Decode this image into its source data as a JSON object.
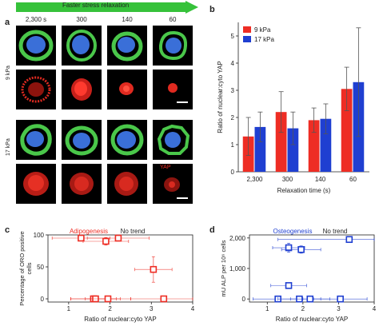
{
  "panel_labels": [
    "a",
    "b",
    "c",
    "d"
  ],
  "panel_a": {
    "arrow_label": "Faster stress relaxation",
    "time_labels": [
      "2,300 s",
      "300",
      "140",
      "60"
    ],
    "row_labels": [
      "9 kPa",
      "17 kPa"
    ],
    "yap_label": "YAP"
  },
  "colors": {
    "red": "#ee2d24",
    "blue": "#1f3fd1",
    "green": "#4ac74a",
    "arrow": "#36c23a"
  },
  "chart_data": [
    {
      "type": "bar",
      "ylabel": "Ratio of nuclear:cyto YAP",
      "xlabel": "Relaxation time (s)",
      "categories": [
        "2,300",
        "300",
        "140",
        "60"
      ],
      "ylim": [
        0,
        5.5
      ],
      "yticks": [
        0,
        1,
        2,
        3,
        4,
        5
      ],
      "legend_position": "top-left",
      "series": [
        {
          "name": "9 kPa",
          "color": "#ee2d24",
          "values": [
            1.3,
            2.2,
            1.9,
            3.05
          ],
          "errors": [
            0.7,
            0.75,
            0.45,
            0.8
          ]
        },
        {
          "name": "17 kPa",
          "color": "#1f3fd1",
          "values": [
            1.65,
            1.6,
            1.95,
            3.3
          ],
          "errors": [
            0.55,
            0.6,
            0.55,
            2.0
          ]
        }
      ]
    },
    {
      "type": "scatter",
      "title": "Adipogenesis",
      "trend_label": "No trend",
      "ylabel": "Percentage of ORO positive cells",
      "xlabel": "Ratio of nuclear:cyto YAP",
      "xlim": [
        0.5,
        4
      ],
      "ylim": [
        -5,
        100
      ],
      "xticks": [
        1,
        2,
        3,
        4
      ],
      "yticks": [
        0,
        50,
        100
      ],
      "color": "#ee2d24",
      "points": [
        {
          "x": 1.3,
          "y": 95,
          "xerr": 0.7,
          "yerr": 0
        },
        {
          "x": 1.9,
          "y": 90,
          "xerr": 0.55,
          "yerr": 6
        },
        {
          "x": 2.2,
          "y": 95,
          "xerr": 0.75,
          "yerr": 0
        },
        {
          "x": 3.05,
          "y": 46,
          "xerr": 0.45,
          "yerr": 20
        },
        {
          "x": 1.6,
          "y": 0,
          "xerr": 0.55,
          "yerr": 0
        },
        {
          "x": 1.65,
          "y": 0,
          "xerr": 0.6,
          "yerr": 0
        },
        {
          "x": 1.95,
          "y": 0,
          "xerr": 0.55,
          "yerr": 0
        },
        {
          "x": 3.3,
          "y": 0,
          "xerr": 0.8,
          "yerr": 0
        }
      ]
    },
    {
      "type": "scatter",
      "title": "Osteogenesis",
      "trend_label": "No trend",
      "ylabel": "mU ALP per 10⁶ cells",
      "xlabel": "Ratio of nuclear:cyto YAP",
      "xlim": [
        0.5,
        4
      ],
      "ylim": [
        -100,
        2100
      ],
      "xticks": [
        1,
        2,
        3,
        4
      ],
      "yticks": [
        0,
        1000,
        2000
      ],
      "ytick_labels": [
        "0",
        "1,000",
        "2,000"
      ],
      "color": "#1f3fd1",
      "points": [
        {
          "x": 3.3,
          "y": 1950,
          "xerr": 2.0,
          "yerr": 0
        },
        {
          "x": 1.6,
          "y": 1680,
          "xerr": 0.45,
          "yerr": 150
        },
        {
          "x": 1.95,
          "y": 1620,
          "xerr": 0.55,
          "yerr": 120
        },
        {
          "x": 1.6,
          "y": 440,
          "xerr": 0.5,
          "yerr": 0
        },
        {
          "x": 1.3,
          "y": 0,
          "xerr": 0.7,
          "yerr": 0
        },
        {
          "x": 1.9,
          "y": 0,
          "xerr": 0.6,
          "yerr": 0
        },
        {
          "x": 2.2,
          "y": 0,
          "xerr": 0.55,
          "yerr": 0
        },
        {
          "x": 3.05,
          "y": 0,
          "xerr": 0.75,
          "yerr": 0
        }
      ]
    }
  ]
}
